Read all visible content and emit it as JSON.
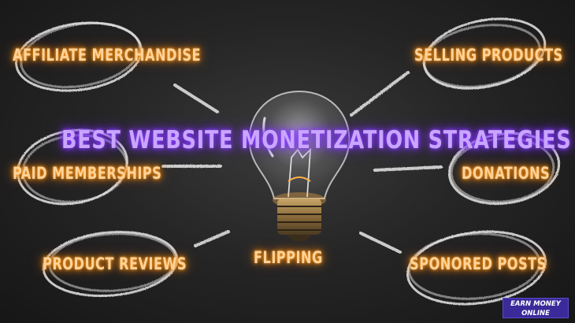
{
  "headline": "BEST WEBSITE MONETIZATION STRATEGIES",
  "strategies": {
    "affiliate": "AFFILIATE MERCHANDISE",
    "selling": "SELLING PRODUCTS",
    "memberships": "PAID MEMBERSHIPS",
    "donations": "DONATIONS",
    "reviews": "PRODUCT REVIEWS",
    "flipping": "FLIPPING",
    "sponsored": "SPONORED POSTS"
  },
  "brand": {
    "line1": "EARN MONEY",
    "line2": "ONLINE"
  },
  "colors": {
    "label_glow": "#ff9a1f",
    "headline_glow": "#8b3dff",
    "chalk": "#e8e8e8",
    "brand_bg": "#3a2a9a"
  },
  "icons": {
    "center": "light-bulb-icon"
  }
}
